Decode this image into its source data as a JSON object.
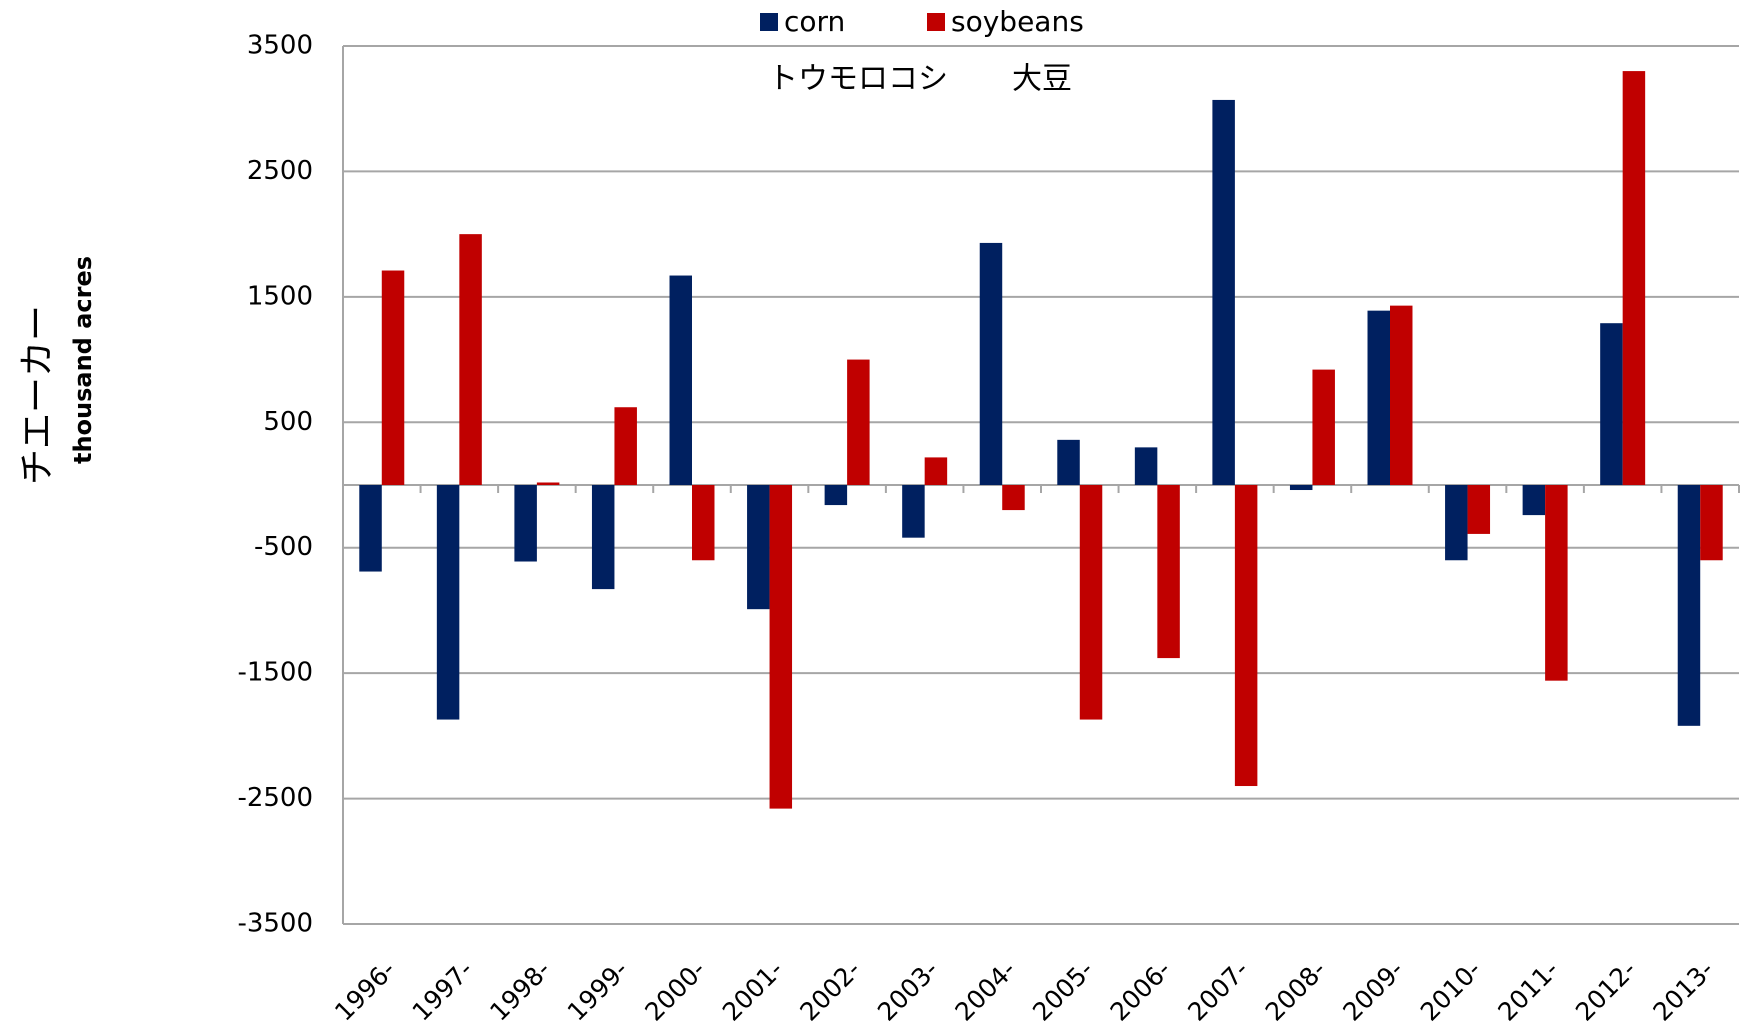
{
  "chart_data": {
    "type": "bar",
    "legend_labels": [
      "corn",
      "soybeans"
    ],
    "annotations": [
      "トウモロコシ",
      "大豆"
    ],
    "y_axis_label": "チエーカー",
    "y_axis_sublabel": "thousand acres",
    "categories": [
      "1996-",
      "1997-",
      "1998-",
      "1999-",
      "2000-",
      "2001-",
      "2002-",
      "2003-",
      "2004-",
      "2005-",
      "2006-",
      "2007-",
      "2008-",
      "2009-",
      "2010-",
      "2011-",
      "2012-",
      "2013-"
    ],
    "series": [
      {
        "name": "corn",
        "color": "#002060",
        "values": [
          -690,
          -1870,
          -610,
          -830,
          1670,
          -990,
          -160,
          -420,
          1930,
          360,
          300,
          3070,
          -40,
          1390,
          -600,
          -240,
          1290,
          -1920
        ]
      },
      {
        "name": "soybeans",
        "color": "#c00000",
        "values": [
          1710,
          2000,
          20,
          620,
          -600,
          -2580,
          1000,
          220,
          -200,
          -1870,
          -1380,
          -2400,
          920,
          1430,
          -390,
          -1560,
          3300,
          -600
        ]
      }
    ],
    "ylim": [
      -3500,
      3500
    ],
    "yticks": [
      3500,
      2500,
      1500,
      500,
      -500,
      -1500,
      -2500,
      -3500
    ],
    "grid": true,
    "legend_position": "top"
  }
}
